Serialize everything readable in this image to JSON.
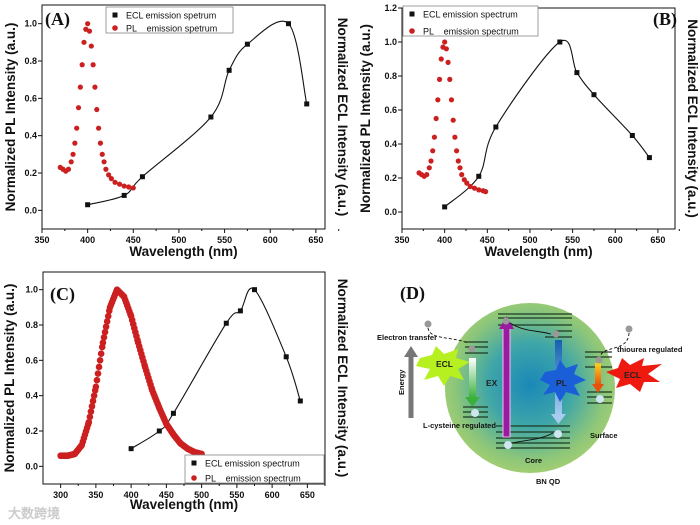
{
  "chart_data": [
    {
      "panel": "(A)",
      "type": "scatter",
      "xlabel": "Wavelength (nm)",
      "ylabel": "Normalized PL Intensity (a.u.)",
      "ylabel_right": "Normalized ECL Intensity (a.u.)",
      "xlim": [
        350,
        660
      ],
      "ylim": [
        -0.1,
        1.1
      ],
      "xticks": [
        350,
        400,
        450,
        500,
        550,
        600,
        650
      ],
      "yticks": [
        "0.0",
        "0.2",
        "0.4",
        "0.6",
        "0.8",
        "1.0"
      ],
      "legend": {
        "position": "top-center"
      },
      "series": [
        {
          "name": "ECL emission spetrum",
          "marker": "square",
          "color": "#111111",
          "fit_line": true,
          "x": [
            400,
            440,
            460,
            535,
            555,
            575,
            620,
            640
          ],
          "y": [
            0.03,
            0.08,
            0.18,
            0.5,
            0.75,
            0.89,
            1.0,
            0.57
          ]
        },
        {
          "name": "PL    emission spetrum",
          "marker": "circle",
          "color": "#cc2020",
          "fit_line": false,
          "x": [
            370,
            373,
            376,
            379,
            382,
            384,
            386,
            388,
            390,
            392,
            394,
            396,
            398,
            400,
            402,
            404,
            406,
            408,
            410,
            412,
            414,
            416,
            418,
            420,
            423,
            426,
            430,
            435,
            440,
            445,
            450
          ],
          "y": [
            0.23,
            0.22,
            0.21,
            0.22,
            0.26,
            0.3,
            0.36,
            0.44,
            0.55,
            0.66,
            0.78,
            0.9,
            0.97,
            1.0,
            0.96,
            0.88,
            0.78,
            0.66,
            0.54,
            0.44,
            0.36,
            0.3,
            0.26,
            0.22,
            0.19,
            0.17,
            0.15,
            0.14,
            0.13,
            0.125,
            0.12
          ]
        }
      ]
    },
    {
      "panel": "(B)",
      "type": "scatter",
      "xlabel": "Wavelength (nm)",
      "ylabel": "Normalized PL Intensity (a.u.)",
      "ylabel_right": "Normalized ECL Intensity (a.u.)",
      "xlim": [
        350,
        670
      ],
      "ylim": [
        -0.1,
        1.2
      ],
      "xticks": [
        350,
        400,
        450,
        500,
        550,
        600,
        650
      ],
      "yticks": [
        "0.0",
        "0.2",
        "0.4",
        "0.6",
        "0.8",
        "1.0",
        "1.2"
      ],
      "legend": {
        "position": "top-left"
      },
      "series": [
        {
          "name": "ECL emission spectrum",
          "marker": "square",
          "color": "#111111",
          "fit_line": true,
          "x": [
            400,
            440,
            460,
            535,
            555,
            575,
            620,
            640
          ],
          "y": [
            0.03,
            0.21,
            0.5,
            1.0,
            0.82,
            0.69,
            0.45,
            0.32
          ]
        },
        {
          "name": "PL    emission spectrum",
          "marker": "circle",
          "color": "#cc2020",
          "fit_line": false,
          "x": [
            370,
            373,
            376,
            379,
            382,
            384,
            386,
            388,
            390,
            392,
            394,
            396,
            398,
            400,
            402,
            404,
            406,
            408,
            410,
            412,
            414,
            416,
            418,
            420,
            423,
            426,
            430,
            435,
            440,
            445,
            448
          ],
          "y": [
            0.23,
            0.22,
            0.21,
            0.22,
            0.26,
            0.3,
            0.36,
            0.44,
            0.55,
            0.66,
            0.78,
            0.9,
            0.97,
            1.0,
            0.96,
            0.88,
            0.78,
            0.66,
            0.54,
            0.44,
            0.36,
            0.3,
            0.26,
            0.22,
            0.19,
            0.17,
            0.15,
            0.14,
            0.13,
            0.125,
            0.12
          ]
        }
      ]
    },
    {
      "panel": "(C)",
      "type": "scatter",
      "xlabel": "Wavelength (nm)",
      "ylabel": "Normalized PL Intensity (a.u.)",
      "ylabel_right": "Normalized ECL Intensity (a.u.)",
      "xlim": [
        275,
        675
      ],
      "ylim": [
        -0.1,
        1.1
      ],
      "xticks": [
        300,
        350,
        400,
        450,
        500,
        550,
        600,
        650
      ],
      "yticks": [
        "0.0",
        "0.2",
        "0.4",
        "0.6",
        "0.8",
        "1.0"
      ],
      "legend": {
        "position": "bottom-right"
      },
      "series": [
        {
          "name": "ECL emission spectrum",
          "marker": "square",
          "color": "#111111",
          "fit_line": true,
          "x": [
            400,
            440,
            460,
            535,
            555,
            575,
            620,
            640
          ],
          "y": [
            0.1,
            0.2,
            0.3,
            0.81,
            0.88,
            1.0,
            0.62,
            0.37
          ]
        },
        {
          "name": "PL    emission spectrum",
          "marker": "circle",
          "color": "#cc2020",
          "fit_line": false,
          "dense": true,
          "x": [
            300,
            310,
            320,
            330,
            340,
            350,
            360,
            370,
            380,
            390,
            400,
            410,
            420,
            430,
            440,
            450,
            460,
            470,
            480,
            490,
            500
          ],
          "y": [
            0.06,
            0.06,
            0.07,
            0.12,
            0.25,
            0.45,
            0.7,
            0.9,
            1.0,
            0.96,
            0.85,
            0.7,
            0.56,
            0.43,
            0.33,
            0.24,
            0.18,
            0.13,
            0.1,
            0.08,
            0.07
          ]
        }
      ]
    }
  ],
  "diagram": {
    "label": "(D)",
    "electron_transfer": "Electron transfer",
    "thiourea": "thiourea regulated",
    "lcysteine": "L-cysteine regulated",
    "energy": "Energy",
    "ecl_left": "ECL",
    "ecl_right": "ECL",
    "ex": "EX",
    "pl": "PL",
    "surface": "Surface",
    "core": "Core",
    "bnqd": "BN QD"
  },
  "watermark": "大数跨境"
}
